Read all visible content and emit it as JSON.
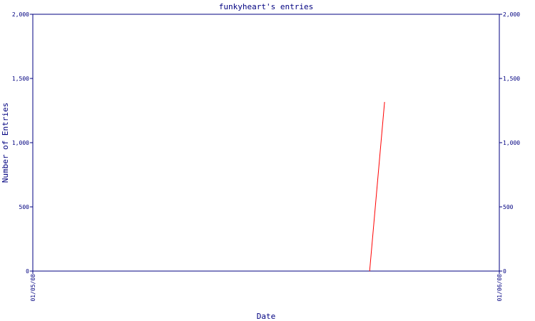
{
  "chart_data": {
    "type": "line",
    "title": "funkyheart's entries",
    "x_label": "Date",
    "y_label": "Number of Entries",
    "x": [
      0.722,
      0.754
    ],
    "series": [
      {
        "name": "entries",
        "color": "#ff0000",
        "values": [
          0,
          1317
        ]
      }
    ],
    "xlim": [
      0,
      1
    ],
    "xticks": [
      {
        "value": 0,
        "label": "01/05/08"
      },
      {
        "value": 1,
        "label": "01/06/08"
      }
    ],
    "ylim": [
      0,
      2000
    ],
    "yticks": [
      0,
      500,
      {
        "value": 1000,
        "label": "1,000"
      },
      {
        "value": 1500,
        "label": "1,500"
      },
      {
        "value": 2000,
        "label": "2,000"
      }
    ],
    "y2lim": [
      0,
      2000
    ],
    "y2ticks": [
      0,
      500,
      {
        "value": 1000,
        "label": "1,000"
      },
      {
        "value": 1500,
        "label": "1,500"
      },
      {
        "value": 2000,
        "label": "2,000"
      }
    ],
    "axis_color": "#000080"
  }
}
